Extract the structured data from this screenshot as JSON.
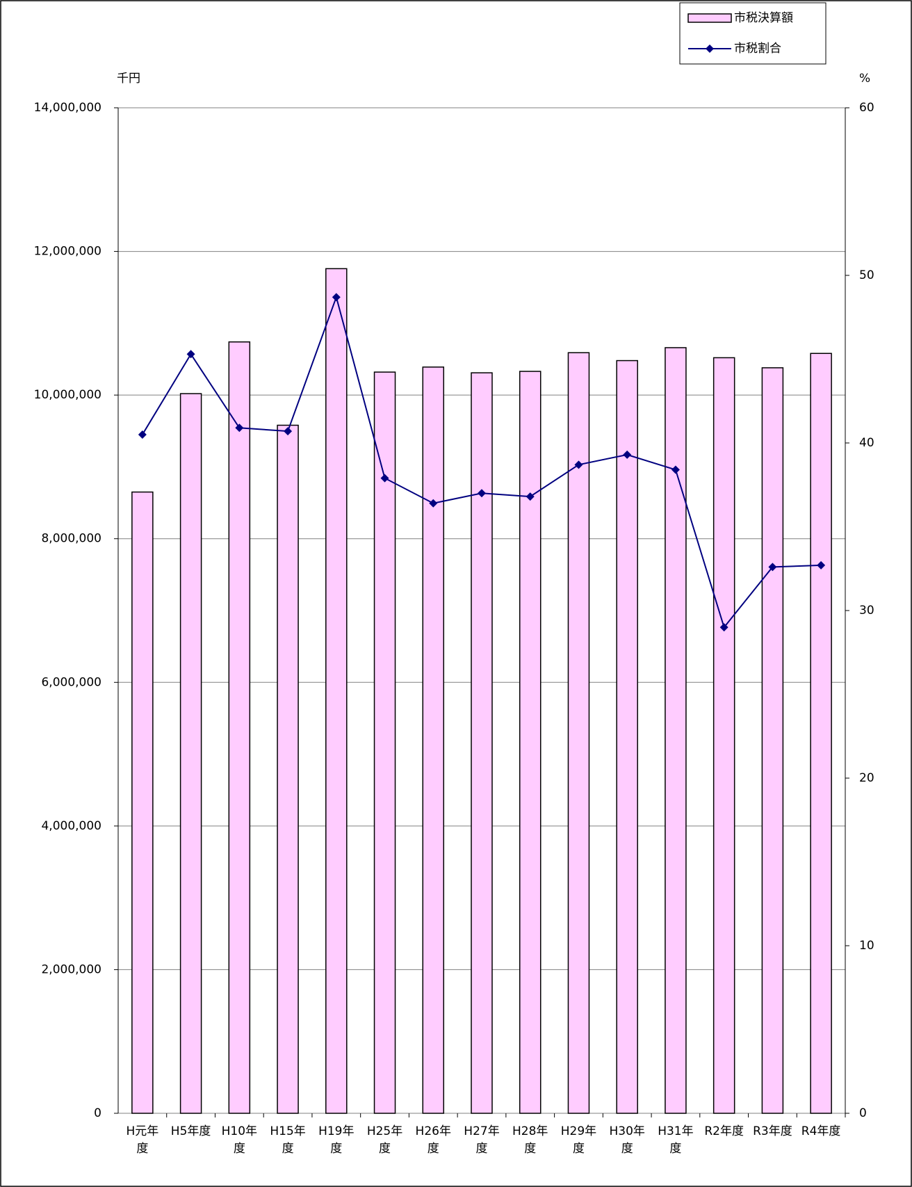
{
  "chart_data": {
    "type": "bar_line",
    "y_label": "千円",
    "y2_label": "%",
    "categories": [
      "H元年度",
      "H5年度",
      "H10年度",
      "H15年度",
      "H19年度",
      "H25年度",
      "H26年度",
      "H27年度",
      "H28年度",
      "H29年度",
      "H30年度",
      "H31年度",
      "R2年度",
      "R3年度",
      "R4年度"
    ],
    "series": [
      {
        "name": "市税決算額",
        "type": "bar",
        "color": "#ffccff",
        "values": [
          8650000,
          10020000,
          10740000,
          9580000,
          11760000,
          10320000,
          10390000,
          10310000,
          10330000,
          10590000,
          10480000,
          10660000,
          10520000,
          10380000,
          10580000
        ]
      },
      {
        "name": "市税割合",
        "type": "line",
        "axis": "y2",
        "color": "#000080",
        "values": [
          40.5,
          45.3,
          40.9,
          40.7,
          48.7,
          37.9,
          36.4,
          37.0,
          36.8,
          38.7,
          39.3,
          38.4,
          29.0,
          32.6,
          32.7
        ]
      }
    ],
    "ylim": [
      0,
      14000000
    ],
    "yticks": [
      0,
      {
        "value": 2000000,
        "label": "2,000,000"
      },
      {
        "value": 4000000,
        "label": "4,000,000"
      },
      {
        "value": 6000000,
        "label": "6,000,000"
      },
      {
        "value": 8000000,
        "label": "8,000,000"
      },
      {
        "value": 10000000,
        "label": "10,000,000"
      },
      {
        "value": 12000000,
        "label": "12,000,000"
      },
      {
        "value": 14000000,
        "label": "14,000,000"
      }
    ],
    "y2lim": [
      0,
      60
    ],
    "y2ticks": [
      0,
      10,
      20,
      30,
      40,
      50,
      60
    ],
    "grid": true
  }
}
